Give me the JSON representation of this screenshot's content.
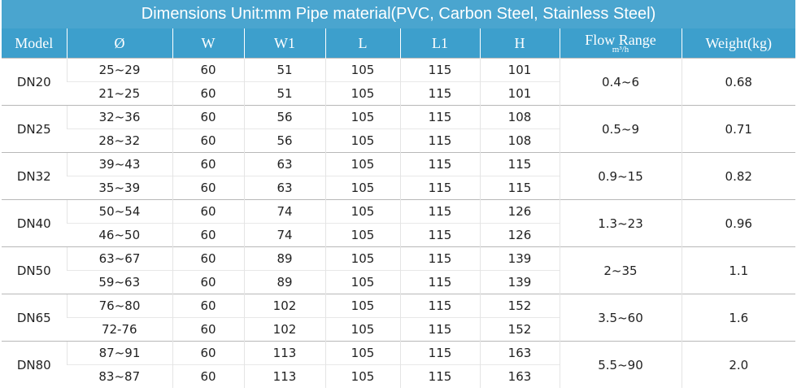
{
  "title": "Dimensions Unit:mm Pipe material(PVC, Carbon Steel, Stainless Steel)",
  "headers": [
    "Model",
    "Ø",
    "W",
    "W1",
    "L",
    "L1",
    "H",
    {
      "label": "Flow Range",
      "unit": "m³/h"
    },
    "Weight(kg)"
  ],
  "groups": [
    {
      "model": "DN20",
      "rows": [
        [
          "25~29",
          "60",
          "51",
          "105",
          "115",
          "101"
        ],
        [
          "21~25",
          "60",
          "51",
          "105",
          "115",
          "101"
        ]
      ],
      "flow": "0.4~6",
      "weight": "0.68"
    },
    {
      "model": "DN25",
      "rows": [
        [
          "32~36",
          "60",
          "56",
          "105",
          "115",
          "108"
        ],
        [
          "28~32",
          "60",
          "56",
          "105",
          "115",
          "108"
        ]
      ],
      "flow": "0.5~9",
      "weight": "0.71"
    },
    {
      "model": "DN32",
      "rows": [
        [
          "39~43",
          "60",
          "63",
          "105",
          "115",
          "115"
        ],
        [
          "35~39",
          "60",
          "63",
          "105",
          "115",
          "115"
        ]
      ],
      "flow": "0.9~15",
      "weight": "0.82"
    },
    {
      "model": "DN40",
      "rows": [
        [
          "50~54",
          "60",
          "74",
          "105",
          "115",
          "126"
        ],
        [
          "46~50",
          "60",
          "74",
          "105",
          "115",
          "126"
        ]
      ],
      "flow": "1.3~23",
      "weight": "0.96"
    },
    {
      "model": "DN50",
      "rows": [
        [
          "63~67",
          "60",
          "89",
          "105",
          "115",
          "139"
        ],
        [
          "59~63",
          "60",
          "89",
          "105",
          "115",
          "139"
        ]
      ],
      "flow": "2~35",
      "weight": "1.1"
    },
    {
      "model": "DN65",
      "rows": [
        [
          "76~80",
          "60",
          "102",
          "105",
          "115",
          "152"
        ],
        [
          "72-76",
          "60",
          "102",
          "105",
          "115",
          "152"
        ]
      ],
      "flow": "3.5~60",
      "weight": "1.6"
    },
    {
      "model": "DN80",
      "rows": [
        [
          "87~91",
          "60",
          "113",
          "105",
          "115",
          "163"
        ],
        [
          "83~87",
          "60",
          "113",
          "105",
          "115",
          "163"
        ]
      ],
      "flow": "5.5~90",
      "weight": "2.0"
    }
  ]
}
